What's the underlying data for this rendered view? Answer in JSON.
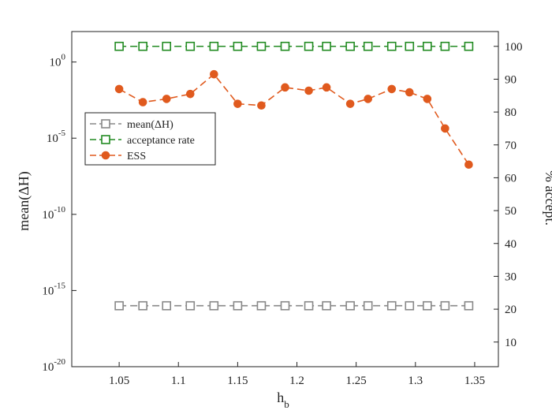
{
  "chart_data": {
    "type": "line",
    "x": [
      1.05,
      1.07,
      1.09,
      1.11,
      1.13,
      1.15,
      1.17,
      1.19,
      1.21,
      1.225,
      1.245,
      1.26,
      1.28,
      1.295,
      1.31,
      1.325,
      1.345
    ],
    "xlabel": "h",
    "xlabel_sub": "b",
    "ylabel_left": "mean(ΔH)",
    "ylabel_right": "% accept.",
    "xlim": [
      1.01,
      1.37
    ],
    "xticks": [
      1.05,
      1.1,
      1.15,
      1.2,
      1.25,
      1.3,
      1.35
    ],
    "xtick_labels": [
      "1.05",
      "1.1",
      "1.15",
      "1.2",
      "1.25",
      "1.3",
      "1.35"
    ],
    "ylim_left_log10": [
      -20,
      2
    ],
    "ylim_right": [
      2.5,
      104.5
    ],
    "yticks_left": [
      {
        "base": "10",
        "exp": "0",
        "value_log10": 0
      },
      {
        "base": "10",
        "exp": "-5",
        "value_log10": -5
      },
      {
        "base": "10",
        "exp": "-10",
        "value_log10": -10
      },
      {
        "base": "10",
        "exp": "-15",
        "value_log10": -15
      },
      {
        "base": "10",
        "exp": "-20",
        "value_log10": -20
      }
    ],
    "yticks_right": [
      10,
      20,
      30,
      40,
      50,
      60,
      70,
      80,
      90,
      100
    ],
    "series": [
      {
        "name": "mean(ΔH)",
        "axis": "left-log",
        "color": "#888888",
        "marker": "square-open",
        "values": [
          1e-16,
          1e-16,
          1e-16,
          1e-16,
          1e-16,
          1e-16,
          1e-16,
          1e-16,
          1e-16,
          1e-16,
          1e-16,
          1e-16,
          1e-16,
          1e-16,
          1e-16,
          1e-16,
          1e-16
        ]
      },
      {
        "name": "acceptance rate",
        "axis": "right",
        "color": "#228b22",
        "marker": "square-open",
        "values": [
          100,
          100,
          100,
          100,
          100,
          100,
          100,
          100,
          100,
          100,
          100,
          100,
          100,
          100,
          100,
          100,
          100
        ]
      },
      {
        "name": "ESS",
        "axis": "right",
        "color": "#e05a1e",
        "marker": "circle-filled",
        "values": [
          87,
          83,
          84,
          85.5,
          91.5,
          82.5,
          82,
          87.5,
          86.5,
          87.5,
          82.5,
          84,
          87,
          86,
          84,
          75,
          64
        ]
      }
    ],
    "legend": {
      "position": "left-middle"
    },
    "grid": false
  }
}
